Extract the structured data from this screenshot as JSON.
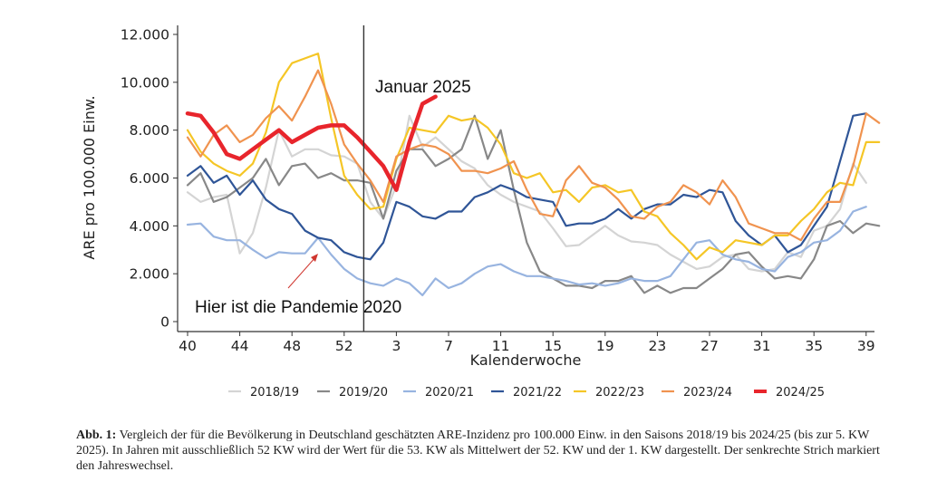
{
  "chart_data": {
    "type": "line",
    "xlabel": "Kalenderwoche",
    "ylabel": "ARE pro 100.000 Einw.",
    "ylim": [
      0,
      12000
    ],
    "yticks": [
      {
        "value": 0,
        "label": "0"
      },
      {
        "value": 2000,
        "label": "2.000"
      },
      {
        "value": 4000,
        "label": "4.000"
      },
      {
        "value": 6000,
        "label": "6.000"
      },
      {
        "value": 8000,
        "label": "8.000"
      },
      {
        "value": 10000,
        "label": "10.000"
      },
      {
        "value": 12000,
        "label": "12.000"
      }
    ],
    "xticks": [
      {
        "index": 0,
        "label": "40"
      },
      {
        "index": 4,
        "label": "44"
      },
      {
        "index": 8,
        "label": "48"
      },
      {
        "index": 12,
        "label": "52"
      },
      {
        "index": 16,
        "label": "3"
      },
      {
        "index": 20,
        "label": "7"
      },
      {
        "index": 24,
        "label": "11"
      },
      {
        "index": 28,
        "label": "15"
      },
      {
        "index": 32,
        "label": "19"
      },
      {
        "index": 36,
        "label": "23"
      },
      {
        "index": 40,
        "label": "27"
      },
      {
        "index": 44,
        "label": "31"
      },
      {
        "index": 48,
        "label": "35"
      },
      {
        "index": 52,
        "label": "39"
      }
    ],
    "year_change_index": 13.5,
    "grid": false,
    "legend_position": "bottom",
    "series": [
      {
        "name": "2018/19",
        "color": "#d4d4d4",
        "width": 2.2,
        "values": [
          5400,
          5000,
          5200,
          5300,
          2850,
          3700,
          5600,
          8000,
          6900,
          7200,
          7200,
          6950,
          6900,
          6600,
          5000,
          4300,
          5700,
          8600,
          7300,
          7700,
          7200,
          6700,
          6400,
          5700,
          5300,
          5000,
          4800,
          4600,
          3900,
          3150,
          3200,
          3600,
          4000,
          3600,
          3350,
          3300,
          3200,
          2800,
          2500,
          2200,
          2300,
          2700,
          2800,
          2200,
          2100,
          2200,
          2900,
          2700,
          3800,
          4000,
          4700,
          6600,
          5800
        ]
      },
      {
        "name": "2019/20",
        "color": "#888888",
        "width": 2.2,
        "values": [
          5700,
          6200,
          5000,
          5200,
          5600,
          6000,
          6800,
          5700,
          6500,
          6600,
          6000,
          6200,
          5900,
          5900,
          5800,
          4300,
          6300,
          7200,
          7200,
          6500,
          6800,
          7200,
          8600,
          6800,
          8000,
          5500,
          3300,
          2100,
          1800,
          1500,
          1500,
          1400,
          1700,
          1700,
          1900,
          1200,
          1500,
          1200,
          1400,
          1400,
          1800,
          2200,
          2800,
          2900,
          2300,
          1800,
          1900,
          1800,
          2600,
          4000,
          4200,
          3700,
          4100,
          4000
        ]
      },
      {
        "name": "2020/21",
        "color": "#98b4e0",
        "width": 2.2,
        "values": [
          4050,
          4100,
          3550,
          3400,
          3400,
          3000,
          2650,
          2900,
          2850,
          2850,
          3500,
          2800,
          2200,
          1800,
          1600,
          1500,
          1800,
          1600,
          1100,
          1800,
          1400,
          1600,
          2000,
          2300,
          2400,
          2100,
          1900,
          1900,
          1800,
          1700,
          1550,
          1600,
          1500,
          1600,
          1800,
          1700,
          1700,
          1900,
          2600,
          3300,
          3400,
          2800,
          2600,
          2500,
          2200,
          2100,
          2700,
          2900,
          3300,
          3400,
          3800,
          4600,
          4800
        ]
      },
      {
        "name": "2021/22",
        "color": "#2f5597",
        "width": 2.2,
        "values": [
          6100,
          6500,
          5800,
          6100,
          5300,
          5900,
          5100,
          4700,
          4500,
          3800,
          3500,
          3400,
          2900,
          2700,
          2600,
          3300,
          5000,
          4800,
          4400,
          4300,
          4600,
          4600,
          5200,
          5400,
          5700,
          5500,
          5200,
          5100,
          5000,
          4000,
          4100,
          4100,
          4300,
          4700,
          4300,
          4700,
          4900,
          4900,
          5300,
          5200,
          5500,
          5400,
          4200,
          3600,
          3200,
          3600,
          2900,
          3200,
          4000,
          4800,
          6700,
          8600,
          8700
        ]
      },
      {
        "name": "2022/23",
        "color": "#f5c626",
        "width": 2.2,
        "values": [
          8000,
          7100,
          6600,
          6300,
          6100,
          6600,
          7900,
          10000,
          10800,
          11000,
          11200,
          8500,
          6100,
          5300,
          4700,
          4800,
          6800,
          8100,
          8000,
          7900,
          8600,
          8400,
          8500,
          8100,
          7400,
          6200,
          6000,
          6200,
          5400,
          5500,
          5000,
          5600,
          5700,
          5400,
          5500,
          4600,
          4400,
          3700,
          3200,
          2600,
          3100,
          2900,
          3400,
          3300,
          3200,
          3600,
          3600,
          4200,
          4700,
          5400,
          5800,
          5700,
          7500,
          7500
        ]
      },
      {
        "name": "2023/24",
        "color": "#f0934f",
        "width": 2.2,
        "values": [
          7700,
          6900,
          7800,
          8200,
          7500,
          7800,
          8500,
          9000,
          8400,
          9400,
          10500,
          9100,
          7400,
          6600,
          5900,
          5000,
          6900,
          7200,
          7400,
          7300,
          7000,
          6300,
          6300,
          6200,
          6400,
          6700,
          5500,
          4500,
          4400,
          5900,
          6500,
          5800,
          5600,
          5100,
          4400,
          4300,
          4800,
          5000,
          5700,
          5400,
          4900,
          5900,
          5200,
          4100,
          3900,
          3700,
          3700,
          3400,
          4300,
          5000,
          5000,
          6500,
          8700,
          8300
        ]
      },
      {
        "name": "2024/25",
        "color": "#e8252c",
        "width": 4.5,
        "values": [
          8700,
          8600,
          7900,
          7000,
          6800,
          7200,
          7600,
          8000,
          7500,
          7800,
          8100,
          8200,
          8200,
          7700,
          7100,
          6500,
          5500,
          7500,
          9100,
          9400
        ]
      }
    ]
  },
  "annotations": {
    "january_label": "Januar 2025",
    "pandemic_label": "Hier ist die Pandemie 2020"
  },
  "caption": {
    "lead": "Abb. 1:",
    "text": "Vergleich der für die Bevölkerung in Deutschland geschätzten ARE-Inzidenz pro 100.000 Einw. in den Saisons 2018/19 bis 2024/25 (bis zur 5. KW 2025). In Jahren mit ausschließlich 52 KW wird der Wert für die 53. KW als Mittelwert der 52. KW und der 1. KW dargestellt. Der senkrechte Strich markiert den Jahreswechsel."
  }
}
